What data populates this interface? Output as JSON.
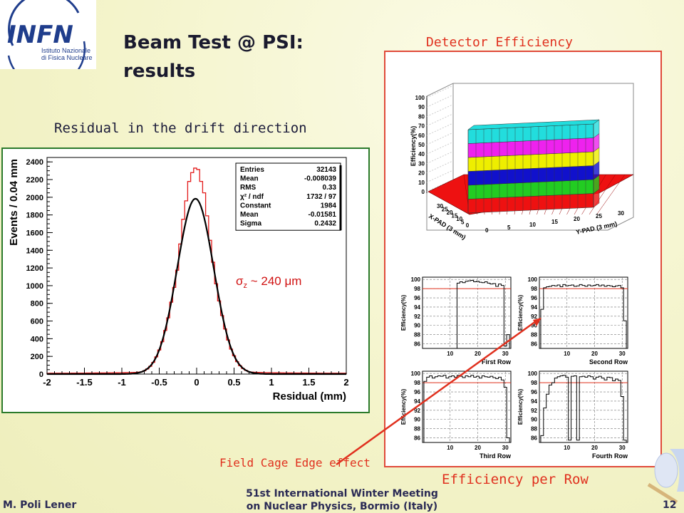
{
  "header": {
    "logo_text": "INFN",
    "logo_subtitle_line1": "Istituto Nazionale",
    "logo_subtitle_line2": "di Fisica Nucleare",
    "title_line1": "Beam Test @ PSI:",
    "title_line2": "results"
  },
  "captions": {
    "residual": "Residual in the drift direction",
    "detector_efficiency": "Detector Efficiency",
    "efficiency_per_row": "Efficiency per Row",
    "field_cage": "Field Cage Edge effect",
    "sigma_prefix": "σ",
    "sigma_sub": "z",
    "sigma_value": " ~ 240 μm"
  },
  "footer": {
    "author": "M. Poli Lener",
    "conference_line1": "51st International Winter Meeting",
    "conference_line2": "on Nuclear Physics, Bormio (Italy)",
    "page": "12"
  },
  "colors": {
    "histogram": "#e31a1a",
    "fit": "#000000",
    "accent_red": "#e0301e",
    "layer_colors": [
      "#ee1111",
      "#22cc22",
      "#1111cc",
      "#eeee00",
      "#ee22ee",
      "#22dddd"
    ]
  },
  "chart_data": [
    {
      "type": "bar",
      "name": "residual-histogram",
      "xlabel": "Residual (mm)",
      "ylabel": "Events / 0.04 mm",
      "xlim": [
        -2,
        2
      ],
      "ylim": [
        0,
        2450
      ],
      "x_ticks": [
        "-2",
        "-1.5",
        "-1",
        "-0.5",
        "0",
        "0.5",
        "1",
        "1.5",
        "2"
      ],
      "y_ticks": [
        "0",
        "200",
        "400",
        "600",
        "800",
        "1000",
        "1200",
        "1400",
        "1600",
        "1800",
        "2000",
        "2200",
        "2400"
      ],
      "bin_width": 0.04,
      "peak_value": 2320,
      "stats_box": [
        {
          "label": "Entries",
          "value": "32143"
        },
        {
          "label": "Mean",
          "value": "-0.008039"
        },
        {
          "label": "RMS",
          "value": "0.33"
        },
        {
          "label": "χ² / ndf",
          "value": "1732 / 97"
        },
        {
          "label": "Constant",
          "value": "1984"
        },
        {
          "label": "Mean",
          "value": "-0.01581"
        },
        {
          "label": "Sigma",
          "value": "0.2432"
        }
      ],
      "fit": {
        "type": "gaussian",
        "constant": 1984,
        "mean": -0.01581,
        "sigma": 0.2432
      }
    },
    {
      "type": "bar",
      "name": "detector-efficiency-lego",
      "xlabel": "X-PAD (3 mm)",
      "ylabel": "Y-PAD (3 mm)",
      "zlabel": "Efficiency(%)",
      "x_ticks": [
        "0",
        "5",
        "10",
        "15",
        "20",
        "25",
        "30"
      ],
      "y_ticks": [
        "0",
        "5",
        "10",
        "15",
        "20",
        "25",
        "30"
      ],
      "z_ticks": [
        "0",
        "10",
        "20",
        "30",
        "40",
        "50",
        "60",
        "70",
        "80",
        "90",
        "100"
      ],
      "efficiency_percent": 98
    },
    {
      "type": "line",
      "name": "efficiency-per-row",
      "ylabel": "Efficiency(%)",
      "y_ticks": [
        "86",
        "88",
        "90",
        "92",
        "94",
        "96",
        "98",
        "100"
      ],
      "x_ticks": [
        "10",
        "20",
        "30"
      ],
      "ylim": [
        85,
        100.5
      ],
      "xlim": [
        0,
        32
      ],
      "reference_line": 98,
      "panels": [
        {
          "title": "First Row",
          "x_start": 13,
          "values": [
            99.2,
            99.5,
            99.3,
            99.6,
            99.7,
            99.8,
            99.5,
            99.6,
            99.4,
            99.3,
            99.5,
            99.2,
            99.0,
            99.1,
            98.5,
            99.0,
            98.7,
            85.5,
            88.0
          ]
        },
        {
          "title": "Second Row",
          "x_start": 1,
          "values": [
            93.5,
            98.2,
            98.4,
            98.5,
            98.7,
            98.6,
            98.8,
            98.4,
            98.9,
            98.6,
            98.7,
            98.8,
            98.5,
            98.6,
            98.9,
            98.7,
            98.5,
            98.8,
            98.6,
            98.7,
            98.9,
            98.6,
            98.8,
            98.5,
            98.7,
            98.6,
            98.4,
            98.6,
            98.7,
            98.2,
            91.0
          ]
        },
        {
          "title": "Third Row",
          "x_start": 1,
          "values": [
            98.3,
            99.2,
            99.5,
            99.0,
            99.3,
            99.5,
            99.4,
            99.6,
            99.0,
            99.3,
            99.5,
            99.2,
            99.6,
            99.4,
            99.1,
            99.5,
            99.3,
            99.6,
            99.2,
            99.4,
            99.0,
            99.5,
            99.3,
            99.2,
            99.4,
            99.1,
            98.9,
            99.2,
            98.6,
            97.0,
            86.0
          ]
        },
        {
          "title": "Fourth Row",
          "x_start": 1,
          "values": [
            86.5,
            92.5,
            95.5,
            97.5,
            98.0,
            99.0,
            99.3,
            99.5,
            99.6,
            99.2,
            85.5,
            99.4,
            99.5,
            85.5,
            99.3,
            99.4,
            99.2,
            99.5,
            99.3,
            98.8,
            99.2,
            99.4,
            99.0,
            98.6,
            99.2,
            99.1,
            98.4,
            98.8,
            98.5,
            95.0,
            85.5
          ]
        }
      ]
    }
  ]
}
